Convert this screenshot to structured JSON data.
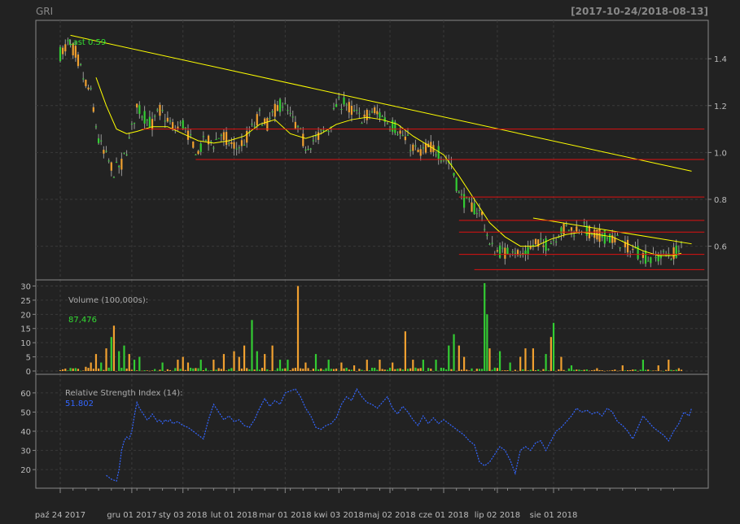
{
  "header": {
    "symbol": "GRI",
    "date_range": "[2017-10-24/2018-08-13]"
  },
  "colors": {
    "background": "#222222",
    "panel_border": "#888888",
    "grid": "#3a3a3a",
    "up": "#33cc33",
    "down": "#f0a030",
    "trend": "#ffff00",
    "sma": "#ffff00",
    "support": "#dd1111",
    "rsi": "#3366ff",
    "axis_text": "#bbbbbb",
    "last_text": "#33dd33"
  },
  "chart_data": [
    {
      "type": "candlestick",
      "panel": "price",
      "last_label": "Last 0.59",
      "ylim": [
        0.47,
        1.55
      ],
      "yticks": [
        0.6,
        0.8,
        1.0,
        1.2,
        1.4
      ],
      "ytick_labels": [
        "0.6",
        "0.8",
        "1.0",
        "1.2",
        "1.4"
      ],
      "close_path": [
        [
          0,
          1.42
        ],
        [
          3,
          1.46
        ],
        [
          6,
          1.43
        ],
        [
          9,
          1.32
        ],
        [
          12,
          1.25
        ],
        [
          15,
          1.05
        ],
        [
          18,
          0.98
        ],
        [
          21,
          0.92
        ],
        [
          24,
          0.95
        ],
        [
          27,
          1.05
        ],
        [
          30,
          1.2
        ],
        [
          33,
          1.15
        ],
        [
          36,
          1.12
        ],
        [
          39,
          1.18
        ],
        [
          42,
          1.14
        ],
        [
          45,
          1.1
        ],
        [
          48,
          1.12
        ],
        [
          51,
          1.05
        ],
        [
          54,
          1.0
        ],
        [
          57,
          1.06
        ],
        [
          60,
          1.04
        ],
        [
          63,
          1.08
        ],
        [
          66,
          1.05
        ],
        [
          69,
          1.02
        ],
        [
          72,
          1.05
        ],
        [
          75,
          1.1
        ],
        [
          78,
          1.16
        ],
        [
          81,
          1.12
        ],
        [
          84,
          1.18
        ],
        [
          87,
          1.21
        ],
        [
          90,
          1.15
        ],
        [
          93,
          1.1
        ],
        [
          96,
          1.03
        ],
        [
          99,
          1.05
        ],
        [
          102,
          1.08
        ],
        [
          105,
          1.1
        ],
        [
          108,
          1.2
        ],
        [
          111,
          1.22
        ],
        [
          114,
          1.18
        ],
        [
          117,
          1.15
        ],
        [
          120,
          1.16
        ],
        [
          123,
          1.18
        ],
        [
          126,
          1.15
        ],
        [
          129,
          1.12
        ],
        [
          132,
          1.1
        ],
        [
          135,
          1.06
        ],
        [
          138,
          1.02
        ],
        [
          141,
          1.0
        ],
        [
          144,
          1.03
        ],
        [
          147,
          1.01
        ],
        [
          150,
          0.98
        ],
        [
          153,
          0.95
        ],
        [
          156,
          0.82
        ],
        [
          159,
          0.78
        ],
        [
          162,
          0.76
        ],
        [
          165,
          0.74
        ],
        [
          168,
          0.6
        ],
        [
          171,
          0.58
        ],
        [
          174,
          0.57
        ],
        [
          177,
          0.6
        ],
        [
          180,
          0.56
        ],
        [
          183,
          0.58
        ],
        [
          186,
          0.62
        ],
        [
          189,
          0.6
        ],
        [
          192,
          0.62
        ],
        [
          195,
          0.66
        ],
        [
          198,
          0.68
        ],
        [
          201,
          0.67
        ],
        [
          204,
          0.68
        ],
        [
          207,
          0.66
        ],
        [
          210,
          0.65
        ],
        [
          213,
          0.64
        ],
        [
          216,
          0.63
        ],
        [
          219,
          0.62
        ],
        [
          222,
          0.6
        ],
        [
          225,
          0.58
        ],
        [
          228,
          0.56
        ],
        [
          231,
          0.54
        ],
        [
          234,
          0.55
        ],
        [
          237,
          0.56
        ],
        [
          240,
          0.57
        ],
        [
          243,
          0.59
        ]
      ],
      "sma_path": [
        [
          14,
          1.32
        ],
        [
          18,
          1.2
        ],
        [
          22,
          1.1
        ],
        [
          26,
          1.08
        ],
        [
          30,
          1.09
        ],
        [
          36,
          1.11
        ],
        [
          42,
          1.11
        ],
        [
          48,
          1.08
        ],
        [
          54,
          1.05
        ],
        [
          60,
          1.04
        ],
        [
          66,
          1.05
        ],
        [
          72,
          1.07
        ],
        [
          78,
          1.12
        ],
        [
          84,
          1.14
        ],
        [
          90,
          1.08
        ],
        [
          96,
          1.06
        ],
        [
          102,
          1.08
        ],
        [
          108,
          1.12
        ],
        [
          114,
          1.14
        ],
        [
          120,
          1.15
        ],
        [
          126,
          1.14
        ],
        [
          132,
          1.12
        ],
        [
          138,
          1.07
        ],
        [
          144,
          1.03
        ],
        [
          150,
          0.99
        ],
        [
          156,
          0.9
        ],
        [
          162,
          0.8
        ],
        [
          168,
          0.7
        ],
        [
          174,
          0.64
        ],
        [
          180,
          0.6
        ],
        [
          186,
          0.6
        ],
        [
          192,
          0.63
        ],
        [
          198,
          0.65
        ],
        [
          204,
          0.66
        ],
        [
          210,
          0.65
        ],
        [
          216,
          0.64
        ],
        [
          222,
          0.61
        ],
        [
          228,
          0.58
        ],
        [
          234,
          0.56
        ],
        [
          240,
          0.56
        ],
        [
          243,
          0.57
        ]
      ],
      "trendlines": [
        {
          "from": [
            4,
            1.5
          ],
          "to": [
            247,
            0.92
          ]
        },
        {
          "from": [
            185,
            0.72
          ],
          "to": [
            247,
            0.61
          ]
        }
      ],
      "support_lines": [
        {
          "x0": 32,
          "x1": 252,
          "y": 1.1
        },
        {
          "x0": 53,
          "x1": 252,
          "y": 0.97
        },
        {
          "x0": 156,
          "x1": 252,
          "y": 0.81
        },
        {
          "x0": 156,
          "x1": 252,
          "y": 0.71
        },
        {
          "x0": 156,
          "x1": 252,
          "y": 0.66
        },
        {
          "x0": 156,
          "x1": 252,
          "y": 0.565
        },
        {
          "x0": 162,
          "x1": 252,
          "y": 0.5
        }
      ]
    },
    {
      "type": "bar",
      "panel": "volume",
      "label": "Volume (100,000s):",
      "last_value": "87,476",
      "ylim": [
        0,
        31
      ],
      "yticks": [
        0,
        5,
        10,
        15,
        20,
        25,
        30
      ],
      "ytick_labels": [
        "0",
        "5",
        "10",
        "15",
        "20",
        "25",
        "30"
      ],
      "spikes": [
        [
          0,
          0.3
        ],
        [
          10,
          1.5
        ],
        [
          12,
          3
        ],
        [
          14,
          6
        ],
        [
          16,
          3
        ],
        [
          18,
          8
        ],
        [
          20,
          12
        ],
        [
          21,
          16
        ],
        [
          23,
          7
        ],
        [
          25,
          9
        ],
        [
          27,
          6
        ],
        [
          29,
          4
        ],
        [
          31,
          5
        ],
        [
          40,
          3
        ],
        [
          46,
          4
        ],
        [
          48,
          5
        ],
        [
          50,
          3
        ],
        [
          55,
          4
        ],
        [
          60,
          4
        ],
        [
          64,
          6
        ],
        [
          68,
          7
        ],
        [
          70,
          5
        ],
        [
          72,
          9
        ],
        [
          75,
          18
        ],
        [
          77,
          7
        ],
        [
          80,
          6
        ],
        [
          83,
          9
        ],
        [
          86,
          4
        ],
        [
          89,
          4
        ],
        [
          93,
          30
        ],
        [
          96,
          3
        ],
        [
          100,
          6
        ],
        [
          105,
          4
        ],
        [
          110,
          3
        ],
        [
          115,
          2
        ],
        [
          120,
          4
        ],
        [
          125,
          4
        ],
        [
          130,
          3
        ],
        [
          135,
          14
        ],
        [
          138,
          4
        ],
        [
          142,
          4
        ],
        [
          147,
          4
        ],
        [
          152,
          9
        ],
        [
          154,
          13
        ],
        [
          156,
          9
        ],
        [
          158,
          5
        ],
        [
          166,
          31
        ],
        [
          167,
          20
        ],
        [
          168,
          8
        ],
        [
          172,
          7
        ],
        [
          176,
          3
        ],
        [
          180,
          5
        ],
        [
          182,
          8
        ],
        [
          185,
          8
        ],
        [
          190,
          6
        ],
        [
          192,
          12
        ],
        [
          193,
          17
        ],
        [
          196,
          5
        ],
        [
          200,
          2
        ],
        [
          210,
          1
        ],
        [
          220,
          2
        ],
        [
          228,
          4
        ],
        [
          234,
          2
        ],
        [
          238,
          4
        ],
        [
          242,
          1
        ]
      ]
    },
    {
      "type": "line",
      "panel": "rsi",
      "label": "Relative Strength Index (14):",
      "last_value": "51.802",
      "ylim": [
        12,
        68
      ],
      "yticks": [
        20,
        30,
        40,
        50,
        60
      ],
      "ytick_labels": [
        "20",
        "30",
        "40",
        "50",
        "60"
      ],
      "points": [
        [
          18,
          17
        ],
        [
          19,
          16
        ],
        [
          20,
          15
        ],
        [
          21,
          14.5
        ],
        [
          22,
          14
        ],
        [
          23,
          20
        ],
        [
          24,
          30
        ],
        [
          25,
          35
        ],
        [
          26,
          37
        ],
        [
          27,
          36
        ],
        [
          28,
          40
        ],
        [
          29,
          48
        ],
        [
          30,
          55
        ],
        [
          31,
          52
        ],
        [
          32,
          50
        ],
        [
          33,
          48
        ],
        [
          34,
          46
        ],
        [
          35,
          47
        ],
        [
          36,
          49
        ],
        [
          37,
          47
        ],
        [
          38,
          45
        ],
        [
          39,
          46
        ],
        [
          40,
          44
        ],
        [
          41,
          46
        ],
        [
          42,
          45
        ],
        [
          43,
          46
        ],
        [
          44,
          44
        ],
        [
          46,
          45
        ],
        [
          48,
          43
        ],
        [
          50,
          42
        ],
        [
          52,
          40
        ],
        [
          54,
          38
        ],
        [
          56,
          36
        ],
        [
          58,
          46
        ],
        [
          60,
          54
        ],
        [
          62,
          50
        ],
        [
          64,
          46
        ],
        [
          66,
          48
        ],
        [
          68,
          45
        ],
        [
          70,
          46
        ],
        [
          72,
          43
        ],
        [
          74,
          42
        ],
        [
          76,
          46
        ],
        [
          78,
          52
        ],
        [
          80,
          57
        ],
        [
          82,
          53
        ],
        [
          84,
          56
        ],
        [
          86,
          54
        ],
        [
          88,
          60
        ],
        [
          90,
          61
        ],
        [
          92,
          62
        ],
        [
          94,
          58
        ],
        [
          96,
          52
        ],
        [
          98,
          48
        ],
        [
          100,
          42
        ],
        [
          102,
          41
        ],
        [
          104,
          43
        ],
        [
          106,
          44
        ],
        [
          108,
          47
        ],
        [
          110,
          54
        ],
        [
          112,
          58
        ],
        [
          114,
          56
        ],
        [
          116,
          62
        ],
        [
          118,
          58
        ],
        [
          120,
          55
        ],
        [
          122,
          54
        ],
        [
          124,
          52
        ],
        [
          126,
          55
        ],
        [
          128,
          58
        ],
        [
          130,
          52
        ],
        [
          132,
          49
        ],
        [
          134,
          53
        ],
        [
          136,
          50
        ],
        [
          138,
          46
        ],
        [
          140,
          43
        ],
        [
          142,
          48
        ],
        [
          144,
          44
        ],
        [
          146,
          47
        ],
        [
          148,
          44
        ],
        [
          150,
          46
        ],
        [
          152,
          44
        ],
        [
          154,
          42
        ],
        [
          156,
          40
        ],
        [
          158,
          38
        ],
        [
          160,
          35
        ],
        [
          162,
          33
        ],
        [
          164,
          24
        ],
        [
          166,
          22
        ],
        [
          168,
          24
        ],
        [
          170,
          28
        ],
        [
          172,
          32
        ],
        [
          174,
          30
        ],
        [
          176,
          25
        ],
        [
          178,
          18
        ],
        [
          180,
          30
        ],
        [
          182,
          32
        ],
        [
          184,
          30
        ],
        [
          186,
          34
        ],
        [
          188,
          35
        ],
        [
          190,
          30
        ],
        [
          192,
          35
        ],
        [
          194,
          40
        ],
        [
          196,
          42
        ],
        [
          198,
          45
        ],
        [
          200,
          48
        ],
        [
          202,
          52
        ],
        [
          204,
          50
        ],
        [
          206,
          51
        ],
        [
          208,
          49
        ],
        [
          210,
          50
        ],
        [
          212,
          48
        ],
        [
          214,
          52
        ],
        [
          216,
          50
        ],
        [
          218,
          45
        ],
        [
          220,
          43
        ],
        [
          222,
          40
        ],
        [
          224,
          36
        ],
        [
          226,
          42
        ],
        [
          228,
          48
        ],
        [
          230,
          45
        ],
        [
          232,
          42
        ],
        [
          234,
          40
        ],
        [
          236,
          38
        ],
        [
          238,
          35
        ],
        [
          240,
          40
        ],
        [
          242,
          44
        ],
        [
          244,
          50
        ],
        [
          246,
          48
        ],
        [
          247,
          52
        ]
      ]
    }
  ],
  "x_axis": {
    "range": [
      0,
      252
    ],
    "ticks": [
      {
        "x": 0,
        "label": "paź 24 2017"
      },
      {
        "x": 28,
        "label": "gru 01 2017"
      },
      {
        "x": 48,
        "label": "sty 03 2018"
      },
      {
        "x": 68,
        "label": "lut 01 2018"
      },
      {
        "x": 88,
        "label": "mar 01 2018"
      },
      {
        "x": 109,
        "label": "kwi 03 2018"
      },
      {
        "x": 129,
        "label": "maj 02 2018"
      },
      {
        "x": 150,
        "label": "cze 01 2018"
      },
      {
        "x": 171,
        "label": "lip 02 2018"
      },
      {
        "x": 193,
        "label": "sie 01 2018"
      }
    ]
  }
}
